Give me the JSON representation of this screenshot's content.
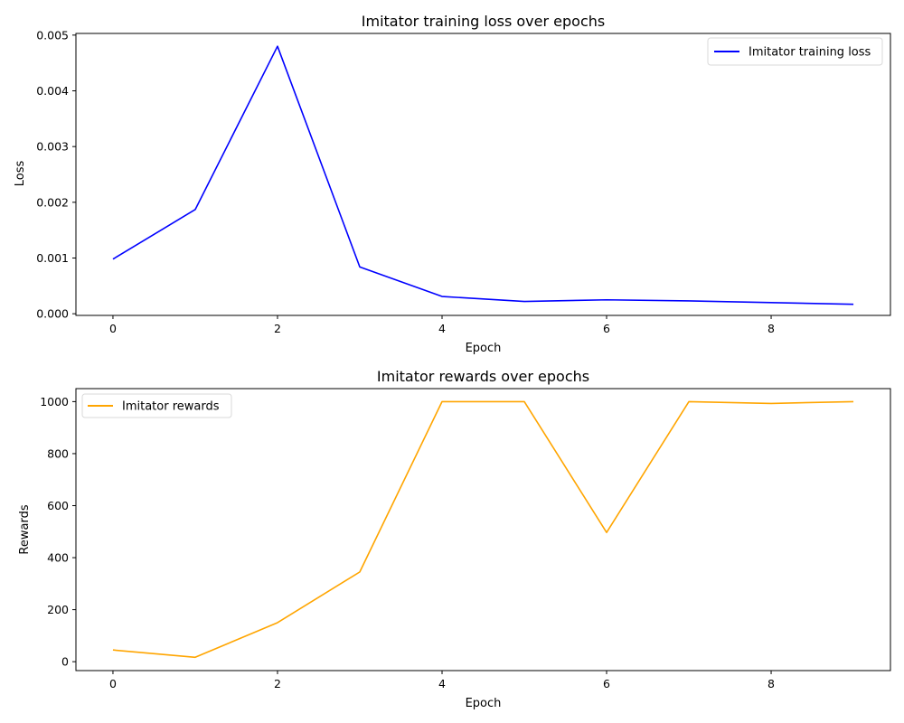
{
  "chart_data": [
    {
      "type": "line",
      "title": "Imitator training loss over epochs",
      "xlabel": "Epoch",
      "ylabel": "Loss",
      "x": [
        0,
        1,
        2,
        3,
        4,
        5,
        6,
        7,
        8,
        9
      ],
      "series": [
        {
          "name": "Imitator training loss",
          "color": "#0000ff",
          "values": [
            0.00098,
            0.00187,
            0.0048,
            0.00084,
            0.00031,
            0.00022,
            0.00025,
            0.00023,
            0.0002,
            0.00017
          ]
        }
      ],
      "xlim": [
        -0.45,
        9.45
      ],
      "ylim": [
        -3e-05,
        0.00503
      ],
      "xticks": [
        0,
        2,
        4,
        6,
        8
      ],
      "xtick_labels": [
        "0",
        "2",
        "4",
        "6",
        "8"
      ],
      "yticks": [
        0,
        0.001,
        0.002,
        0.003,
        0.004,
        0.005
      ],
      "ytick_labels": [
        "0.000",
        "0.001",
        "0.002",
        "0.003",
        "0.004",
        "0.005"
      ],
      "legend_position": "top-right",
      "grid": false
    },
    {
      "type": "line",
      "title": "Imitator rewards over epochs",
      "xlabel": "Epoch",
      "ylabel": "Rewards",
      "x": [
        0,
        1,
        2,
        3,
        4,
        5,
        6,
        7,
        8,
        9
      ],
      "series": [
        {
          "name": "Imitator rewards",
          "color": "#ffa500",
          "values": [
            45,
            17,
            150,
            345,
            1000,
            1000,
            497,
            1000,
            993,
            1000
          ]
        }
      ],
      "xlim": [
        -0.45,
        9.45
      ],
      "ylim": [
        -34.2,
        1050
      ],
      "xticks": [
        0,
        2,
        4,
        6,
        8
      ],
      "xtick_labels": [
        "0",
        "2",
        "4",
        "6",
        "8"
      ],
      "yticks": [
        0,
        200,
        400,
        600,
        800,
        1000
      ],
      "ytick_labels": [
        "0",
        "200",
        "400",
        "600",
        "800",
        "1000"
      ],
      "legend_position": "top-left",
      "grid": false
    }
  ]
}
